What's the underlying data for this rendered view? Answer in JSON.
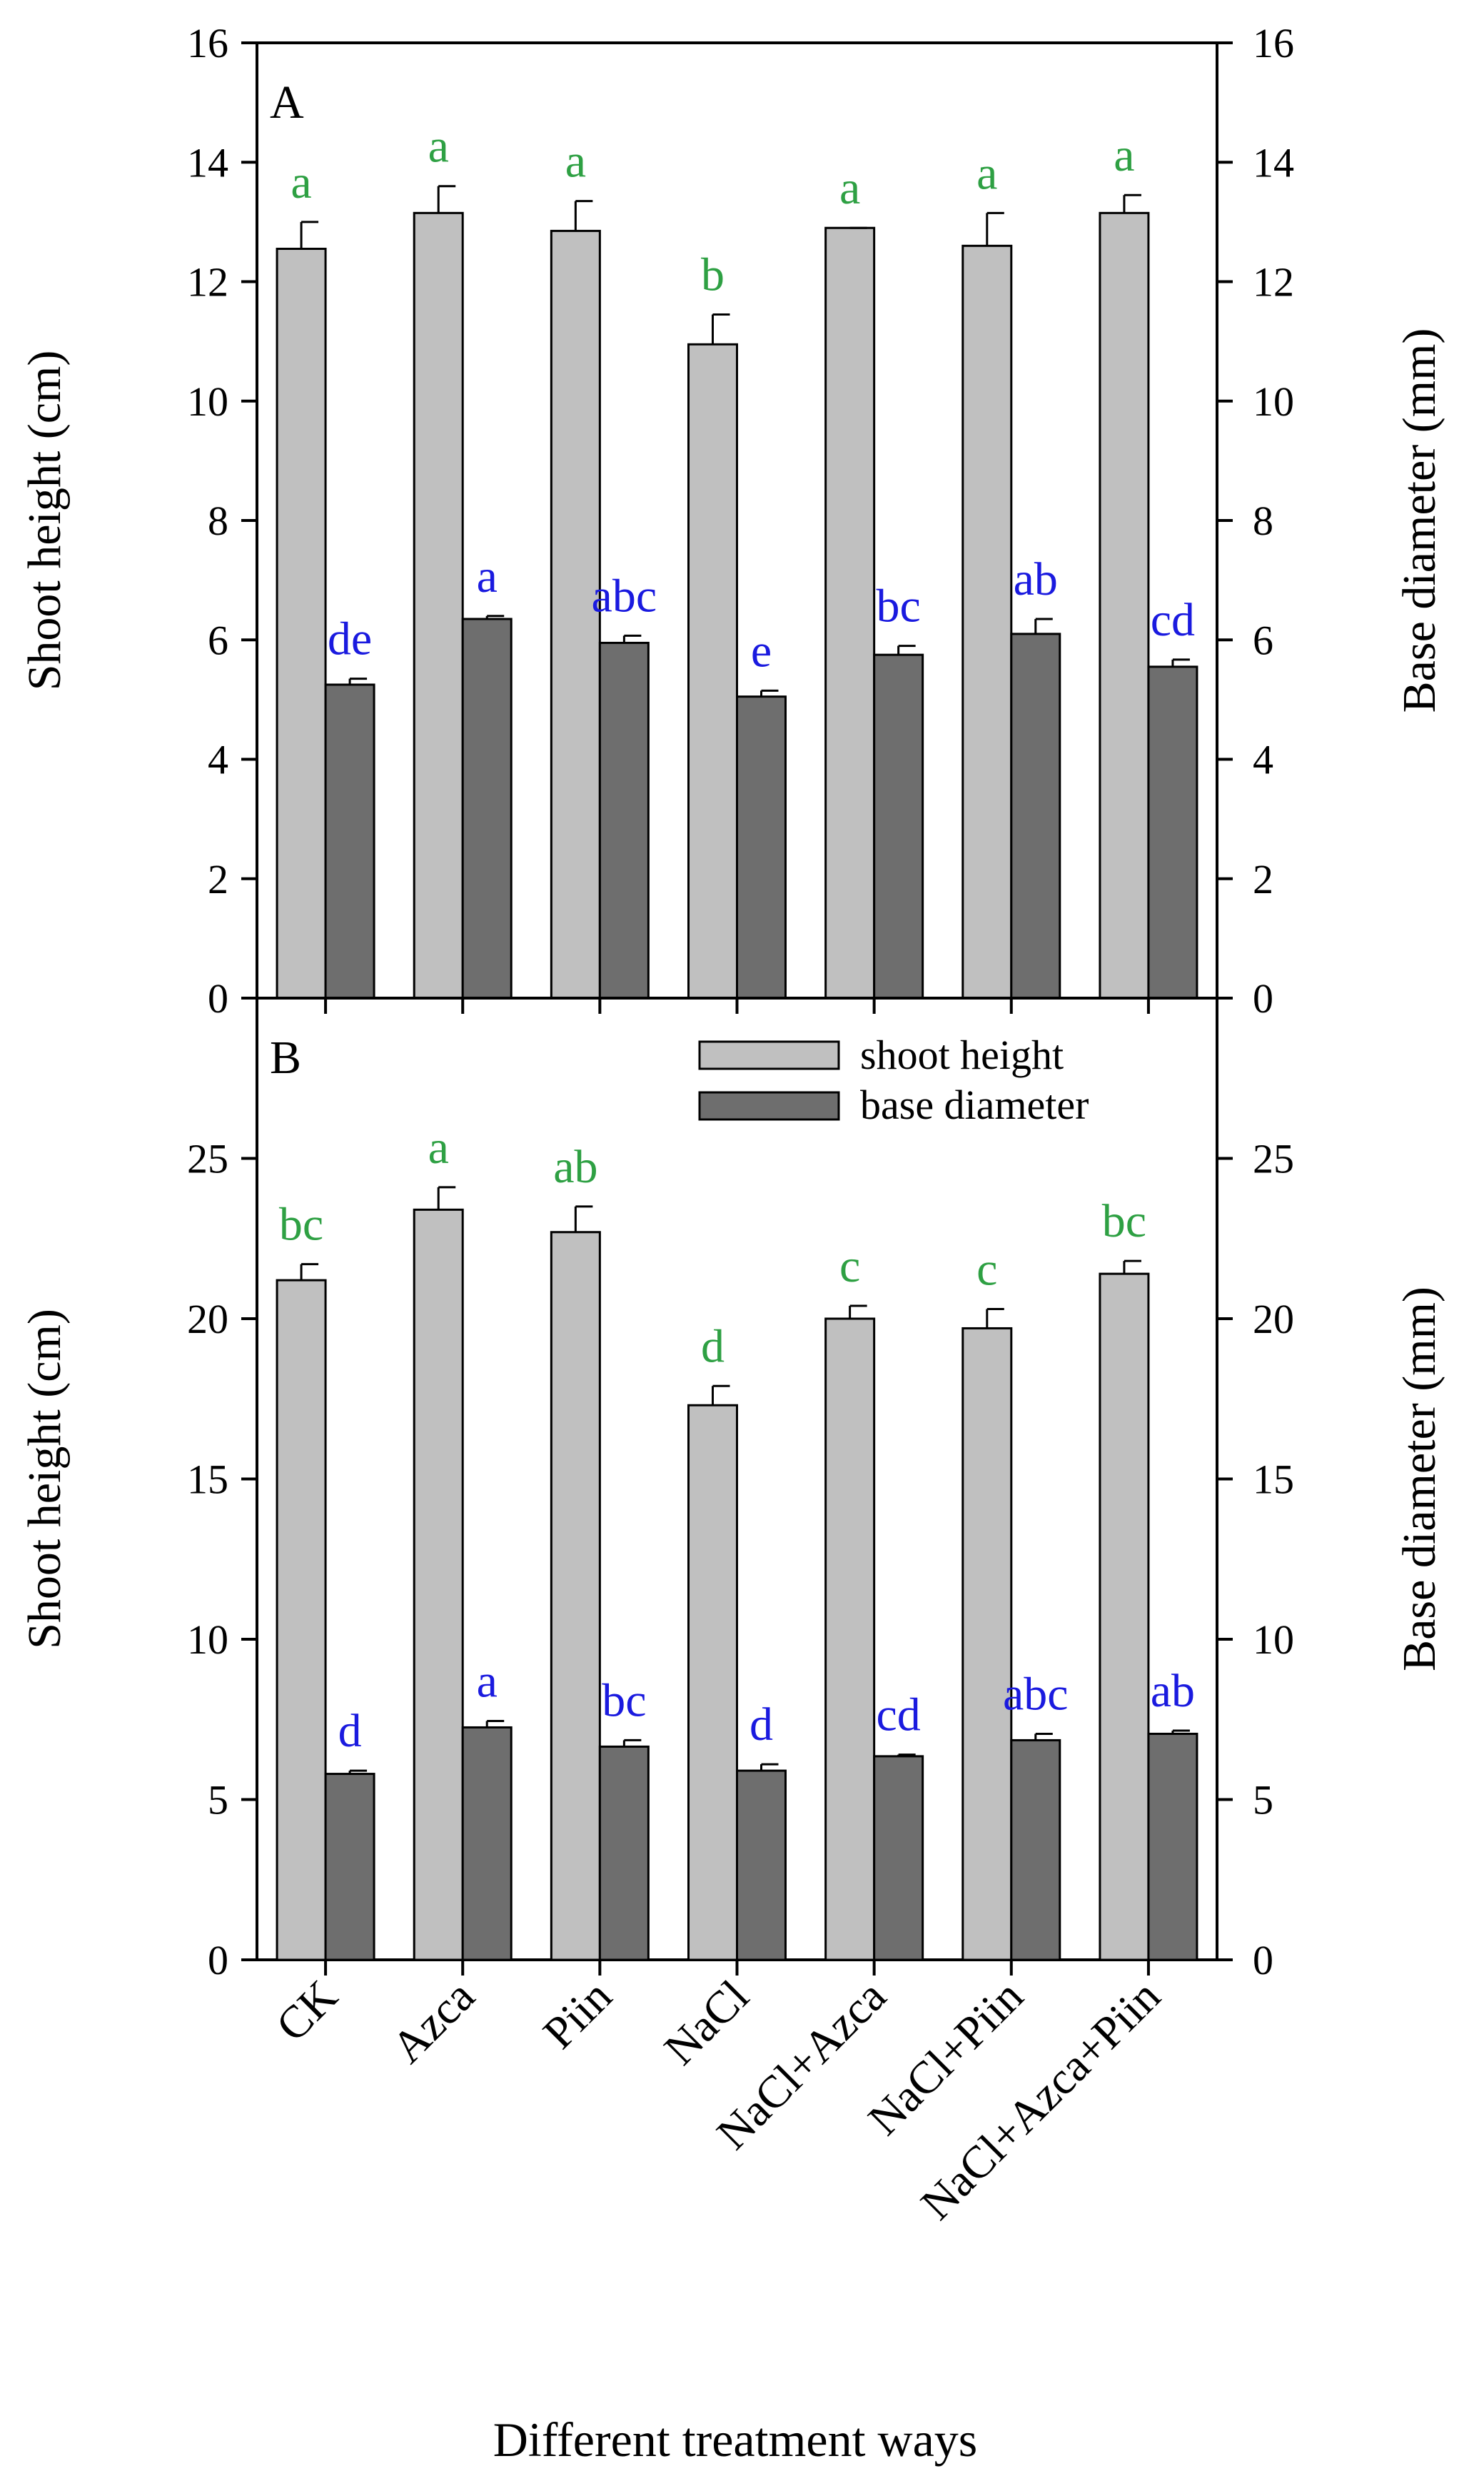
{
  "colors": {
    "shoot_height": "#c0c0c0",
    "base_diameter": "#6e6e6e",
    "sig_shoot": "#2ea043",
    "sig_base": "#1a1adf",
    "axis": "#000000"
  },
  "xlabel": "Different treatment ways",
  "legend": {
    "shoot_height": "shoot height",
    "base_diameter": "base diameter"
  },
  "chart_data": [
    {
      "type": "bar",
      "panel": "A",
      "categories": [
        "CK",
        "Azca",
        "Piin",
        "NaCl",
        "NaCl+Azca",
        "NaCl+Piin",
        "NaCl+Azca+Piin"
      ],
      "ylabel_left": "Shoot height (cm)",
      "ylabel_right": "Base diameter (mm)",
      "ylim_left": [
        0,
        16
      ],
      "ylim_right": [
        0,
        16
      ],
      "yticks_left": [
        "0",
        "2",
        "4",
        "6",
        "8",
        "10",
        "12",
        "14",
        "16"
      ],
      "yticks_right": [
        "0",
        "2",
        "4",
        "6",
        "8",
        "10",
        "12",
        "14",
        "16"
      ],
      "series": [
        {
          "name": "shoot height",
          "axis": "left",
          "values": [
            12.55,
            13.15,
            12.85,
            10.95,
            12.9,
            12.6,
            13.15
          ],
          "errors": [
            0.45,
            0.45,
            0.5,
            0.5,
            0.0,
            0.55,
            0.3
          ],
          "letters": [
            "a",
            "a",
            "a",
            "b",
            "a",
            "a",
            "a"
          ]
        },
        {
          "name": "base diameter",
          "axis": "right",
          "values": [
            5.25,
            6.35,
            5.95,
            5.05,
            5.75,
            6.1,
            5.55
          ],
          "errors": [
            0.1,
            0.05,
            0.12,
            0.1,
            0.15,
            0.25,
            0.12
          ],
          "letters": [
            "de",
            "a",
            "abc",
            "e",
            "bc",
            "ab",
            "cd"
          ]
        }
      ]
    },
    {
      "type": "bar",
      "panel": "B",
      "categories": [
        "CK",
        "Azca",
        "Piin",
        "NaCl",
        "NaCl+Azca",
        "NaCl+Piin",
        "NaCl+Azca+Piin"
      ],
      "ylabel_left": "Shoot height (cm)",
      "ylabel_right": "Base diameter (mm)",
      "ylim_left": [
        0,
        30
      ],
      "ylim_right": [
        0,
        30
      ],
      "yticks_left": [
        "0",
        "5",
        "10",
        "15",
        "20",
        "25"
      ],
      "yticks_right": [
        "0",
        "5",
        "10",
        "15",
        "20",
        "25"
      ],
      "series": [
        {
          "name": "shoot height",
          "axis": "left",
          "values": [
            21.2,
            23.4,
            22.7,
            17.3,
            20.0,
            19.7,
            21.4
          ],
          "errors": [
            0.5,
            0.7,
            0.8,
            0.6,
            0.4,
            0.6,
            0.4
          ],
          "letters": [
            "bc",
            "a",
            "ab",
            "d",
            "c",
            "c",
            "bc"
          ]
        },
        {
          "name": "base diameter",
          "axis": "right",
          "values": [
            5.8,
            7.25,
            6.65,
            5.9,
            6.35,
            6.85,
            7.05
          ],
          "errors": [
            0.1,
            0.2,
            0.2,
            0.2,
            0.05,
            0.2,
            0.1
          ],
          "letters": [
            "d",
            "a",
            "bc",
            "d",
            "cd",
            "abc",
            "ab"
          ]
        }
      ]
    }
  ]
}
